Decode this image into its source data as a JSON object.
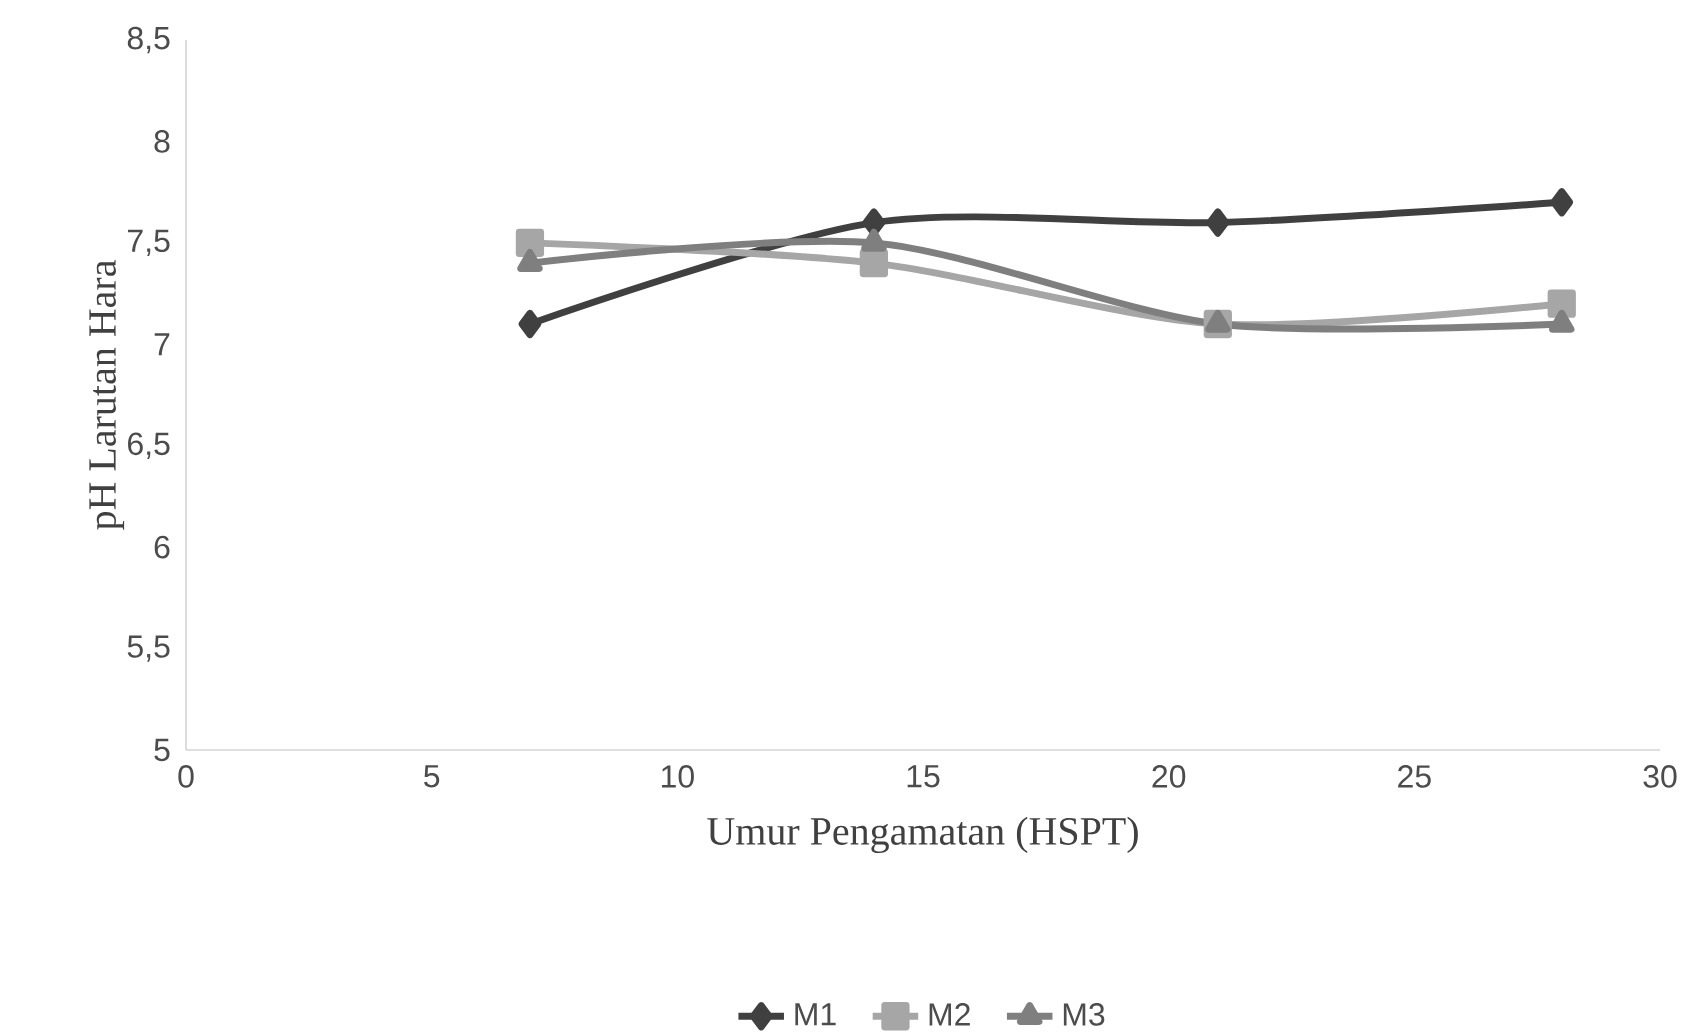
{
  "chart_data": {
    "type": "line",
    "xlabel": "Umur Pengamatan (HSPT)",
    "ylabel": "pH Larutan Hara",
    "x": [
      7,
      14,
      21,
      28
    ],
    "series": [
      {
        "name": "M1",
        "color": "#404040",
        "marker": "diamond",
        "values": [
          7.1,
          7.6,
          7.6,
          7.7
        ]
      },
      {
        "name": "M2",
        "color": "#a6a6a6",
        "marker": "square",
        "values": [
          7.5,
          7.4,
          7.1,
          7.2
        ]
      },
      {
        "name": "M3",
        "color": "#7f7f7f",
        "marker": "triangle",
        "values": [
          7.4,
          7.5,
          7.1,
          7.1
        ]
      }
    ],
    "xlim": [
      0,
      30
    ],
    "xticks": [
      0,
      5,
      10,
      15,
      20,
      25,
      30
    ],
    "ylim": [
      5,
      8.5
    ],
    "yticks": [
      5,
      {
        "value": 5.5,
        "label": "5,5"
      },
      6,
      {
        "value": 6.5,
        "label": "6,5"
      },
      7,
      {
        "value": 7.5,
        "label": "7,5"
      },
      8,
      {
        "value": 8.5,
        "label": "8,5"
      }
    ],
    "grid": false,
    "legend": "bottom",
    "line_style": "solid"
  }
}
